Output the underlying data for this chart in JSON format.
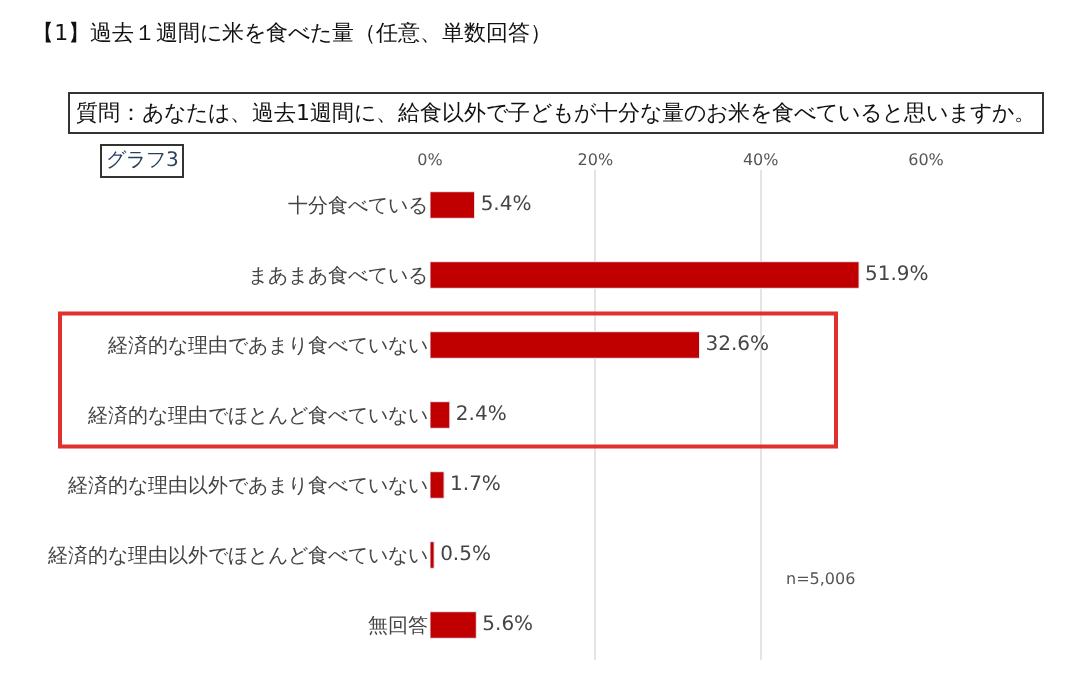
{
  "chart_data": {
    "type": "bar",
    "orientation": "horizontal",
    "title": "【1】過去１週間に米を食べた量（任意、単数回答）",
    "subtitle": "質問：あなたは、過去1週間に、給食以外で子どもが十分な量のお米を食べていると思いますか。",
    "categories": [
      "十分食べている",
      "まあまあ食べている",
      "経済的な理由であまり食べていない",
      "経済的な理由でほとんど食べていない",
      "経済的な理由以外であまり食べていない",
      "経済的な理由以外でほとんど食べていない",
      "無回答"
    ],
    "values": [
      5.4,
      51.9,
      32.6,
      2.4,
      1.7,
      0.5,
      5.6
    ],
    "value_labels": [
      "5.4%",
      "51.9%",
      "32.6%",
      "2.4%",
      "1.7%",
      "0.5%",
      "5.6%"
    ],
    "color": "#c00000",
    "xlim": [
      0,
      60
    ],
    "xticks": [
      {
        "value": 0,
        "label": "0%"
      },
      {
        "value": 20,
        "label": "20%"
      },
      {
        "value": 40,
        "label": "40%"
      },
      {
        "value": 60,
        "label": "60%"
      }
    ],
    "grid": "x",
    "legend": false,
    "annotations": [
      "グラフ3",
      "n=5,006"
    ]
  }
}
